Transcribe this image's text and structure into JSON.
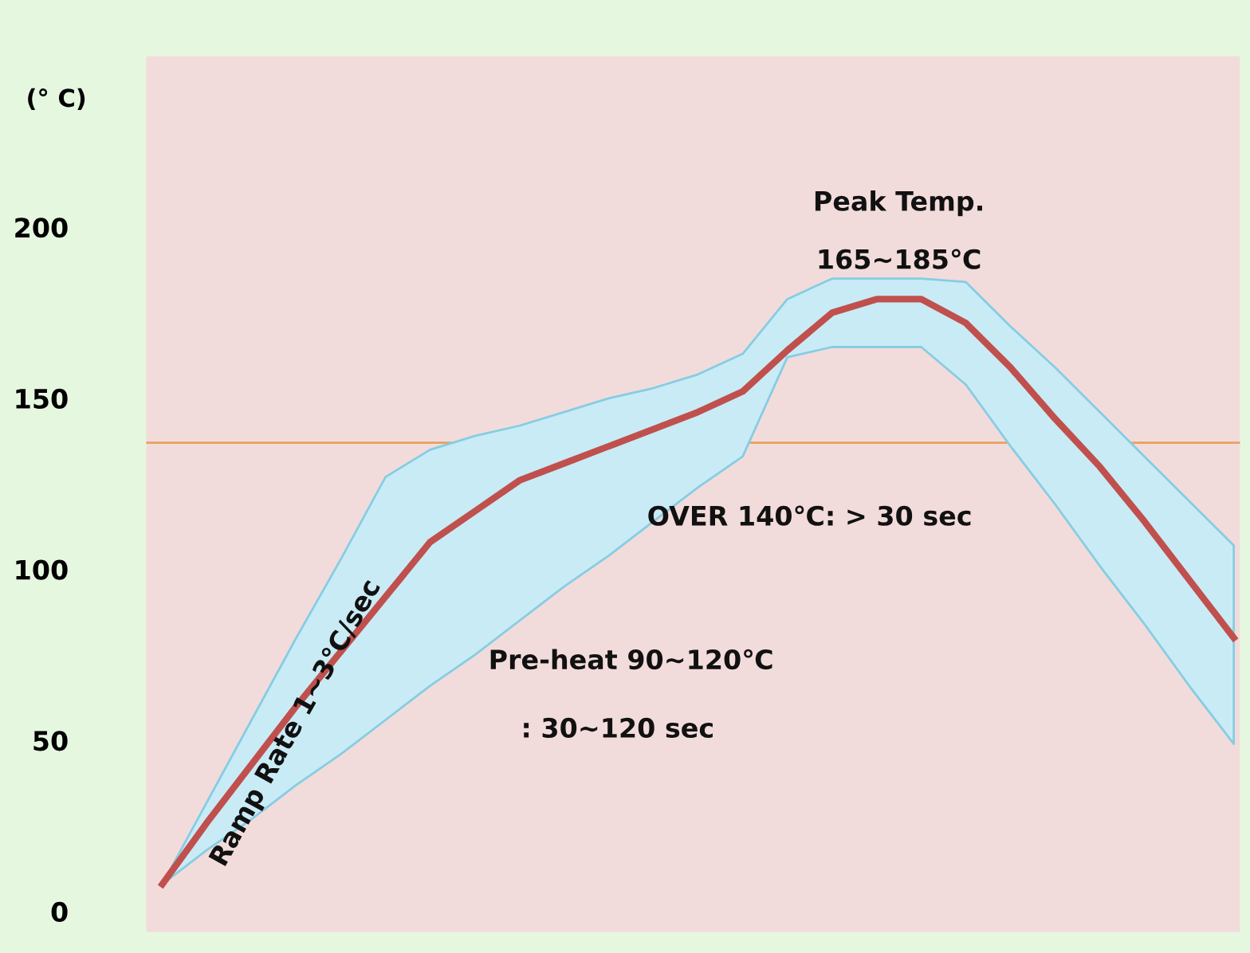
{
  "chart_data": {
    "type": "line",
    "ylabel": "(° C)",
    "categories": [
      null,
      null,
      null,
      null,
      null,
      null,
      null,
      null,
      null,
      null,
      null,
      null,
      null,
      null,
      null,
      null,
      null,
      null,
      null,
      null,
      null,
      null,
      null,
      null,
      null
    ],
    "series": [
      {
        "color": "#c0504d",
        "values": [
          8,
          26,
          43,
          60,
          76,
          92,
          108,
          117,
          126,
          131,
          136,
          141,
          146,
          152,
          164,
          175,
          179,
          179,
          172,
          159,
          144,
          130,
          114,
          97,
          80
        ],
        "lower": [
          8,
          18,
          27,
          37,
          46,
          56,
          66,
          75,
          85,
          95,
          104,
          114,
          124,
          133,
          162,
          165,
          165,
          165,
          154,
          136,
          119,
          101,
          84,
          66,
          49
        ],
        "upper": [
          8,
          32,
          56,
          80,
          103,
          127,
          135,
          139,
          142,
          146,
          150,
          153,
          157,
          163,
          179,
          185,
          185,
          185,
          184,
          171,
          159,
          146,
          133,
          120,
          107
        ]
      }
    ],
    "ylim": [
      -6,
      250
    ],
    "yticks": [
      0,
      50,
      100,
      150,
      200
    ],
    "grid": false,
    "legend": false,
    "tick_labels": "y",
    "ref_lines": [
      {
        "axis": "y",
        "value": 137,
        "color": "#e8a060"
      }
    ],
    "annotations": [
      "Peak Temp.",
      "165~185℃",
      "OVER 140℃: > 30 sec",
      "Ramp Rate 1~3℃/sec",
      "Pre-heat 90~120℃",
      ": 30~120 sec"
    ]
  }
}
